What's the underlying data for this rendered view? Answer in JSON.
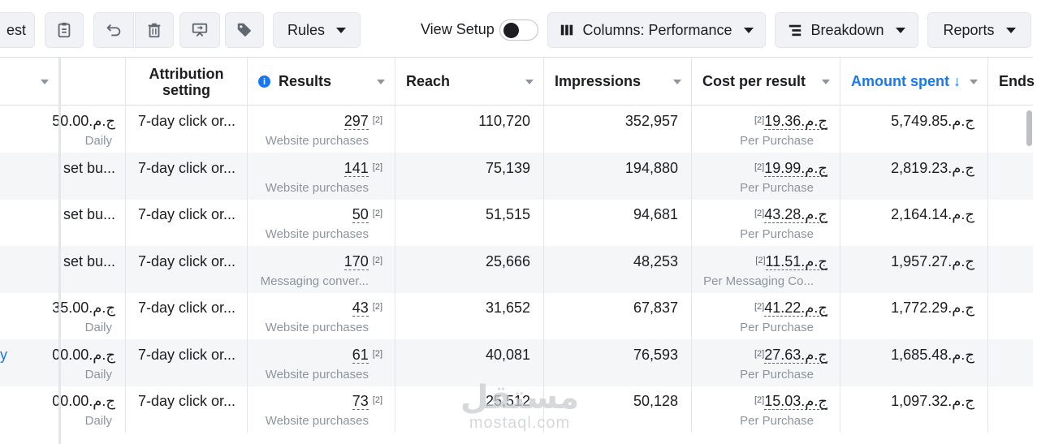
{
  "toolbar": {
    "partial_left_label": "est",
    "rules_label": "Rules",
    "view_setup_label": "View Setup",
    "columns_label": "Columns: Performance",
    "breakdown_label": "Breakdown",
    "reports_label": "Reports"
  },
  "table": {
    "headers": {
      "attribution": "Attribution setting",
      "results": "Results",
      "reach": "Reach",
      "impressions": "Impressions",
      "cost_per_result": "Cost per result",
      "amount_spent": "Amount spent ↓",
      "ends": "Ends"
    },
    "rows": [
      {
        "budget": "ج.م.50.00",
        "budget_sub": "Daily",
        "attribution": "7-day click or...",
        "results": "297",
        "results_ref": "[2]",
        "results_sub": "Website purchases",
        "reach": "110,720",
        "impressions": "352,957",
        "cost": "ج.م.19.36",
        "cost_ref": "[2]",
        "cost_sub": "Per Purchase",
        "spent": "ج.م.5,749.85",
        "name": ""
      },
      {
        "budget": "set bu...",
        "budget_sub": "",
        "attribution": "7-day click or...",
        "results": "141",
        "results_ref": "[2]",
        "results_sub": "Website purchases",
        "reach": "75,139",
        "impressions": "194,880",
        "cost": "ج.م.19.99",
        "cost_ref": "[2]",
        "cost_sub": "Per Purchase",
        "spent": "ج.م.2,819.23",
        "name": ""
      },
      {
        "budget": "set bu...",
        "budget_sub": "",
        "attribution": "7-day click or...",
        "results": "50",
        "results_ref": "[2]",
        "results_sub": "Website purchases",
        "reach": "51,515",
        "impressions": "94,681",
        "cost": "ج.م.43.28",
        "cost_ref": "[2]",
        "cost_sub": "Per Purchase",
        "spent": "ج.م.2,164.14",
        "name": ""
      },
      {
        "budget": "set bu...",
        "budget_sub": "",
        "attribution": "7-day click or...",
        "results": "170",
        "results_ref": "[2]",
        "results_sub": "Messaging conver...",
        "reach": "25,666",
        "impressions": "48,253",
        "cost": "ج.م.11.51",
        "cost_ref": "[2]",
        "cost_sub": "Per Messaging Co...",
        "spent": "ج.م.1,957.27",
        "name": ""
      },
      {
        "budget": "ج.م.35.00",
        "budget_sub": "Daily",
        "attribution": "7-day click or...",
        "results": "43",
        "results_ref": "[2]",
        "results_sub": "Website purchases",
        "reach": "31,652",
        "impressions": "67,837",
        "cost": "ج.م.41.22",
        "cost_ref": "[2]",
        "cost_sub": "Per Purchase",
        "spent": "ج.م.1,772.29",
        "name": ""
      },
      {
        "budget": "ج.م.00.00",
        "budget_sub": "Daily",
        "attribution": "7-day click or...",
        "results": "61",
        "results_ref": "[2]",
        "results_sub": "Website purchases",
        "reach": "40,081",
        "impressions": "76,593",
        "cost": "ج.م.27.63",
        "cost_ref": "[2]",
        "cost_sub": "Per Purchase",
        "spent": "ج.م.1,685.48",
        "name": "y"
      },
      {
        "budget": "ج.م.00.00",
        "budget_sub": "Daily",
        "attribution": "7-day click or...",
        "results": "73",
        "results_ref": "[2]",
        "results_sub": "Website purchases",
        "reach": "25,512",
        "impressions": "50,128",
        "cost": "ج.م.15.03",
        "cost_ref": "[2]",
        "cost_sub": "Per Purchase",
        "spent": "ج.م.1,097.32",
        "name": ""
      }
    ]
  },
  "watermark": {
    "arabic": "مستقل",
    "latin": "mostaql.com"
  },
  "colors": {
    "accent": "#1877f2",
    "border": "#dadde1",
    "row_alt": "#f5f6f7",
    "muted": "#8d949e"
  }
}
